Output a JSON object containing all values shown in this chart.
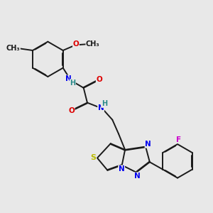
{
  "background_color": "#e8e8e8",
  "figure_size": [
    3.0,
    3.0
  ],
  "dpi": 100,
  "bond_color": "#1a1a1a",
  "bond_width": 1.4,
  "atom_colors": {
    "C": "#1a1a1a",
    "N": "#0000ee",
    "O": "#dd0000",
    "S": "#bbbb00",
    "F": "#cc00cc",
    "H": "#2a8a8a"
  },
  "font_size": 7.5,
  "font_size_small": 6.5
}
